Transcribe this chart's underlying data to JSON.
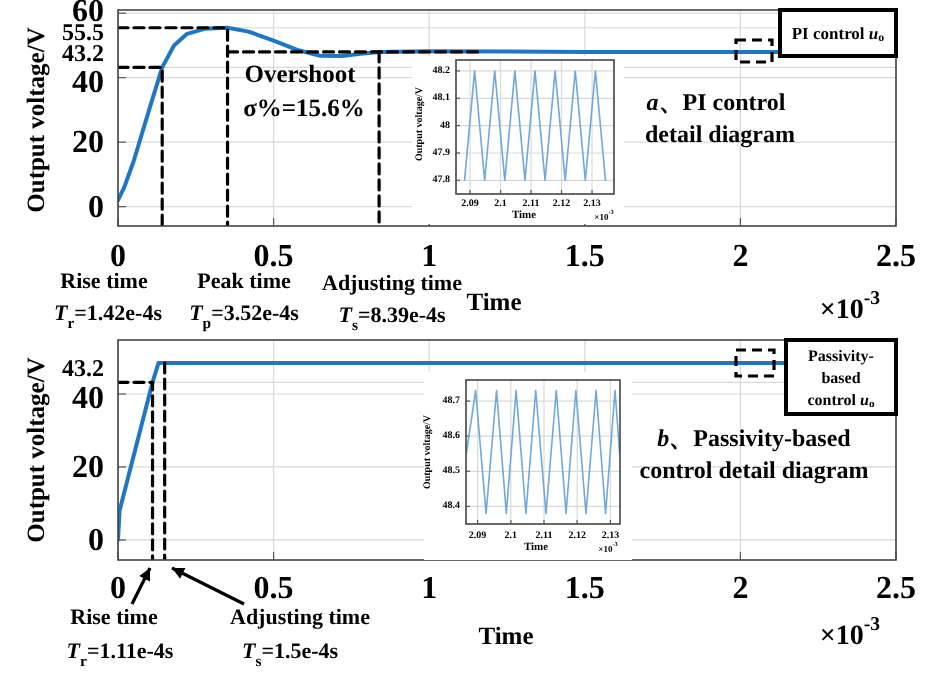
{
  "chart_data": [
    {
      "type": "line",
      "xlabel": "Time",
      "ylabel": "Output voltage/V",
      "xlim": [
        0,
        2.5
      ],
      "ylim": [
        -6,
        61
      ],
      "xticks": [
        0,
        0.5,
        1,
        1.5,
        2,
        2.5
      ],
      "yticks": [
        0,
        20,
        40,
        43.2,
        55.5,
        60
      ],
      "grid": true,
      "series": [
        {
          "name": "PI control *u*$_{o}$",
          "color": "#1f77c4",
          "x": [
            0,
            0.02,
            0.05,
            0.1,
            0.142,
            0.18,
            0.22,
            0.28,
            0.352,
            0.42,
            0.5,
            0.58,
            0.65,
            0.72,
            0.78,
            0.839,
            1,
            1.5,
            2,
            2.12
          ],
          "values": [
            2,
            6,
            14,
            30,
            43.2,
            50,
            53.5,
            55.2,
            55.5,
            54.3,
            51.5,
            48.5,
            46.8,
            46.7,
            47.4,
            48,
            48.2,
            48,
            48,
            48
          ]
        },
        {
          "color": "#000000",
          "line_style": "dashed",
          "x": [
            0,
            0.142,
            0.142
          ],
          "values": [
            43.2,
            43.2,
            -6
          ]
        },
        {
          "color": "#000000",
          "line_style": "dashed",
          "x": [
            0,
            0.352,
            0.352
          ],
          "values": [
            55.5,
            55.5,
            -6
          ]
        },
        {
          "color": "#000000",
          "line_style": "dashed",
          "x": [
            0.352,
            1.16
          ],
          "values": [
            48,
            48
          ]
        },
        {
          "color": "#000000",
          "line_style": "dashed",
          "x": [
            0.839,
            0.839
          ],
          "values": [
            48,
            -6
          ]
        }
      ],
      "annotations": [
        "Overshoot",
        "σ%=15.6%",
        "*a*、PI control",
        "detail diagram",
        "Rise time",
        "*T*$_{r}$=1.42e-4s",
        "Peak time",
        "*T*$_{p}$=3.52e-4s",
        "Adjusting time",
        "*T*$_{s}$=8.39e-4s",
        "×10$^{-3}$"
      ]
    },
    {
      "type": "line",
      "xlabel": "Time",
      "ylabel": "Output voltage/V",
      "xlim": [
        2.0854,
        2.1372
      ],
      "ylim": [
        47.75,
        48.24
      ],
      "xticks": [
        2.09,
        2.1,
        2.11,
        2.12,
        2.13
      ],
      "yticks": [
        47.8,
        47.9,
        48,
        48.1,
        48.2
      ],
      "grid": true,
      "series": [
        {
          "color": "#6fa8dc",
          "x": [
            2.0882,
            2.0915,
            2.0948,
            2.0981,
            2.1014,
            2.1047,
            2.108,
            2.1113,
            2.1146,
            2.1179,
            2.1212,
            2.1245,
            2.1278,
            2.1311,
            2.1344
          ],
          "values": [
            47.8,
            48.2,
            47.8,
            48.2,
            47.8,
            48.2,
            47.8,
            48.2,
            47.8,
            48.2,
            47.8,
            48.2,
            47.8,
            48.2,
            47.8
          ]
        }
      ],
      "annotations": [
        "×10$^{-3}$"
      ]
    },
    {
      "type": "line",
      "xlabel": "Time",
      "ylabel": "Output voltage/V",
      "xlim": [
        0,
        2.5
      ],
      "ylim": [
        -5.5,
        54.8
      ],
      "xticks": [
        0,
        0.5,
        1,
        1.5,
        2,
        2.5
      ],
      "yticks": [
        0,
        20,
        40,
        43.2
      ],
      "grid": true,
      "series": [
        {
          "name": "Passivity-based control *u*$_{o}$",
          "color": "#1f77c4",
          "x": [
            0,
            0.005,
            0.111,
            0.13,
            2.14
          ],
          "values": [
            0,
            8,
            43.2,
            48.5,
            48.5
          ]
        },
        {
          "color": "#000000",
          "line_style": "dashed",
          "x": [
            0,
            0.111,
            0.111
          ],
          "values": [
            43.2,
            43.2,
            -5.5
          ]
        },
        {
          "color": "#000000",
          "line_style": "dashed",
          "x": [
            0.15,
            0.15
          ],
          "values": [
            48.5,
            -5.5
          ]
        }
      ],
      "annotations": [
        "*b*、Passivity-based",
        "control detail diagram",
        "Rise time",
        "*T*$_{r}$=1.11e-4s",
        "Adjusting time",
        "*T*$_{s}$=1.5e-4s",
        "×10$^{-3}$"
      ]
    },
    {
      "type": "line",
      "xlabel": "Time",
      "ylabel": "Output voltage/V",
      "xlim": [
        2.0865,
        2.1329
      ],
      "ylim": [
        48.35,
        48.76
      ],
      "xticks": [
        2.09,
        2.1,
        2.11,
        2.12,
        2.13
      ],
      "yticks": [
        48.4,
        48.5,
        48.6,
        48.7
      ],
      "grid": true,
      "series": [
        {
          "color": "#6fa8dc",
          "x": [
            2.0866,
            2.0894,
            2.09255,
            2.0957,
            2.09865,
            2.1016,
            2.10455,
            2.1075,
            2.1106,
            2.1137,
            2.11665,
            2.1196,
            2.12265,
            2.1257,
            2.12855,
            2.1314,
            2.1328
          ],
          "values": [
            48.55,
            48.73,
            48.38,
            48.73,
            48.38,
            48.73,
            48.38,
            48.73,
            48.38,
            48.73,
            48.38,
            48.73,
            48.38,
            48.73,
            48.38,
            48.73,
            48.55
          ]
        }
      ],
      "annotations": [
        "×10$^{-3}$"
      ]
    }
  ]
}
